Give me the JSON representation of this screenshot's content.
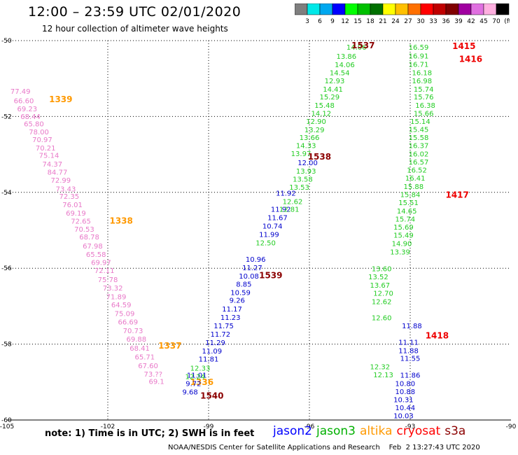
{
  "header": {
    "title": "12:00 – 23:59 UTC 02/01/2020",
    "subtitle": "12 hour collection of altimeter wave heights"
  },
  "color_scale": {
    "labels": [
      "3",
      "6",
      "9",
      "12",
      "15",
      "18",
      "21",
      "24",
      "27",
      "30",
      "33",
      "36",
      "39",
      "42",
      "45",
      "70",
      "(ft)"
    ],
    "colors": [
      "#7f7f7f",
      "#00e8e8",
      "#00a8f0",
      "#0000ff",
      "#00ff00",
      "#00c000",
      "#007000",
      "#ffff00",
      "#ffc000",
      "#ff7000",
      "#ff0000",
      "#c00000",
      "#800000",
      "#a000a0",
      "#e070e0",
      "#ffb0e0",
      "#000000"
    ]
  },
  "note": "note:  1) Time is in UTC;  2) SWH is in feet",
  "legend": [
    {
      "name": "jason2",
      "color": "#0000ff"
    },
    {
      "name": "jason3",
      "color": "#00b000"
    },
    {
      "name": "altika",
      "color": "#ff9900"
    },
    {
      "name": "cryosat",
      "color": "#ff0000"
    },
    {
      "name": "s3a",
      "color": "#8b0000"
    }
  ],
  "credit": "NOAA/NESDIS Center for Satellite Applications and Research    Feb  2 13:27:43 UTC 2020",
  "chart_data": {
    "type": "scatter",
    "xlim": [
      -105,
      -90
    ],
    "ylim": [
      -60,
      -50
    ],
    "x_ticks": [
      "-105",
      "-102",
      "-99",
      "-96",
      "-93",
      "-90"
    ],
    "y_ticks": [
      "-50",
      "-52",
      "-54",
      "-56",
      "-58",
      "-60"
    ],
    "grid": true,
    "series": [
      {
        "name": "s3a",
        "color": "#e878c8",
        "type": "values",
        "points": [
          [
            -104.6,
            -51.33,
            "77.49"
          ],
          [
            -104.5,
            -51.58,
            "66.60"
          ],
          [
            -104.4,
            -51.79,
            "69.23"
          ],
          [
            -104.3,
            -51.99,
            "68.44"
          ],
          [
            -104.2,
            -52.19,
            "65.80"
          ],
          [
            -104.05,
            -52.4,
            "78.00"
          ],
          [
            -103.95,
            -52.6,
            "70.97"
          ],
          [
            -103.85,
            -52.82,
            "70.21"
          ],
          [
            -103.75,
            -53.02,
            "75.14"
          ],
          [
            -103.65,
            -53.25,
            "74.37"
          ],
          [
            -103.5,
            -53.46,
            "84.77"
          ],
          [
            -103.4,
            -53.67,
            "72.99"
          ],
          [
            -103.25,
            -53.9,
            "73.43"
          ],
          [
            -103.15,
            -54.1,
            "72.35"
          ],
          [
            -103.05,
            -54.32,
            "76.01"
          ],
          [
            -102.95,
            -54.54,
            "69.19"
          ],
          [
            -102.8,
            -54.75,
            "72.65"
          ],
          [
            -102.7,
            -54.96,
            "70.53"
          ],
          [
            -102.55,
            -55.17,
            "68.78"
          ],
          [
            -102.45,
            -55.41,
            "67.98"
          ],
          [
            -102.35,
            -55.63,
            "65.58"
          ],
          [
            -102.2,
            -55.84,
            "69.97"
          ],
          [
            -102.1,
            -56.05,
            "72.11"
          ],
          [
            -102.0,
            -56.29,
            "75.78"
          ],
          [
            -101.85,
            -56.51,
            "73.32"
          ],
          [
            -101.75,
            -56.74,
            "71.89"
          ],
          [
            -101.6,
            -56.96,
            "64.59"
          ],
          [
            -101.5,
            -57.19,
            "75.09"
          ],
          [
            -101.4,
            -57.41,
            "66.69"
          ],
          [
            -101.25,
            -57.64,
            "70.73"
          ],
          [
            -101.15,
            -57.86,
            "69.88"
          ],
          [
            -101.05,
            -58.1,
            "68.41"
          ],
          [
            -100.9,
            -58.33,
            "65.71"
          ],
          [
            -100.8,
            -58.56,
            "67.60"
          ],
          [
            -100.65,
            -58.78,
            "73.??"
          ],
          [
            -100.55,
            -58.98,
            "69.1"
          ]
        ]
      },
      {
        "name": "s3a-pass",
        "color": "#ff9900",
        "type": "labels",
        "points": [
          [
            -103.4,
            -51.55,
            "1339"
          ],
          [
            -101.6,
            -54.75,
            "1338"
          ],
          [
            -100.15,
            -58.04,
            "1337"
          ],
          [
            -99.2,
            -59.0,
            "1336"
          ]
        ]
      },
      {
        "name": "jason2",
        "color": "#0000cc",
        "type": "values",
        "points": [
          [
            -96.05,
            -53.21,
            "12.00"
          ],
          [
            -96.7,
            -54.01,
            "11.92"
          ],
          [
            -96.85,
            -54.44,
            "11.92"
          ],
          [
            -96.95,
            -54.66,
            "11.67"
          ],
          [
            -97.1,
            -54.88,
            "10.74"
          ],
          [
            -97.2,
            -55.1,
            "11.99"
          ],
          [
            -97.6,
            -55.76,
            "10.96"
          ],
          [
            -97.7,
            -55.98,
            "11.27"
          ],
          [
            -97.8,
            -56.2,
            "10.08"
          ],
          [
            -97.95,
            -56.41,
            "8.85"
          ],
          [
            -98.05,
            -56.63,
            "10.59"
          ],
          [
            -98.15,
            -56.84,
            "9.26"
          ],
          [
            -98.3,
            -57.07,
            "11.17"
          ],
          [
            -98.35,
            -57.29,
            "11.23"
          ],
          [
            -98.55,
            -57.51,
            "11.75"
          ],
          [
            -98.65,
            -57.73,
            "11.72"
          ],
          [
            -98.8,
            -57.95,
            "11.29"
          ],
          [
            -98.9,
            -58.17,
            "11.09"
          ],
          [
            -99.0,
            -58.39,
            "11.81"
          ],
          [
            -99.35,
            -58.81,
            "11.01"
          ],
          [
            -99.45,
            -59.03,
            "9.72"
          ],
          [
            -99.55,
            -59.25,
            "9.68"
          ],
          [
            -92.95,
            -57.51,
            "11.88"
          ],
          [
            -93.05,
            -57.94,
            "11.11"
          ],
          [
            -93.05,
            -58.16,
            "11.88"
          ],
          [
            -93.0,
            -58.37,
            "11.55"
          ],
          [
            -93.0,
            -58.81,
            "11.86"
          ],
          [
            -93.15,
            -59.03,
            "10.80"
          ],
          [
            -93.15,
            -59.24,
            "10.88"
          ],
          [
            -93.2,
            -59.46,
            "10.31"
          ],
          [
            -93.15,
            -59.67,
            "10.44"
          ],
          [
            -93.2,
            -59.88,
            "10.03"
          ]
        ]
      },
      {
        "name": "jason3",
        "color": "#22cc22",
        "type": "values",
        "points": [
          [
            -94.6,
            -50.17,
            "14.06"
          ],
          [
            -94.9,
            -50.41,
            "13.86"
          ],
          [
            -94.95,
            -50.63,
            "14.06"
          ],
          [
            -95.1,
            -50.84,
            "14.54"
          ],
          [
            -95.25,
            -51.05,
            "12.93"
          ],
          [
            -95.3,
            -51.27,
            "14.41"
          ],
          [
            -95.4,
            -51.48,
            "15.29"
          ],
          [
            -95.55,
            -51.7,
            "15.48"
          ],
          [
            -95.65,
            -51.91,
            "14.12"
          ],
          [
            -95.8,
            -52.12,
            "12.90"
          ],
          [
            -95.85,
            -52.34,
            "13.29"
          ],
          [
            -96.0,
            -52.55,
            "13.66"
          ],
          [
            -96.1,
            -52.76,
            "14.33"
          ],
          [
            -96.25,
            -52.97,
            "13.97"
          ],
          [
            -96.1,
            -53.43,
            "13.93"
          ],
          [
            -96.2,
            -53.64,
            "13.58"
          ],
          [
            -96.3,
            -53.86,
            "13.53"
          ],
          [
            -96.5,
            -54.23,
            "12.62"
          ],
          [
            -96.6,
            -54.44,
            "12.81"
          ],
          [
            -97.3,
            -55.32,
            "12.50"
          ],
          [
            -93.85,
            -56.01,
            "13.60"
          ],
          [
            -93.95,
            -56.22,
            "13.52"
          ],
          [
            -93.9,
            -56.44,
            "13.67"
          ],
          [
            -93.8,
            -56.65,
            "12.70"
          ],
          [
            -93.85,
            -56.87,
            "12.62"
          ],
          [
            -93.85,
            -57.3,
            "12.60"
          ],
          [
            -93.9,
            -58.59,
            "12.32"
          ],
          [
            -93.8,
            -58.8,
            "12.13"
          ],
          [
            -99.25,
            -58.63,
            "12.33"
          ],
          [
            -99.4,
            -58.85,
            "12.24"
          ],
          [
            -92.75,
            -50.17,
            "16.59"
          ],
          [
            -92.75,
            -50.4,
            "16.91"
          ],
          [
            -92.75,
            -50.62,
            "16.71"
          ],
          [
            -92.65,
            -50.84,
            "16.18"
          ],
          [
            -92.65,
            -51.05,
            "16.98"
          ],
          [
            -92.6,
            -51.27,
            "15.74"
          ],
          [
            -92.6,
            -51.48,
            "15.76"
          ],
          [
            -92.55,
            -51.7,
            "16.38"
          ],
          [
            -92.6,
            -51.91,
            "15.66"
          ],
          [
            -92.7,
            -52.12,
            "15.14"
          ],
          [
            -92.75,
            -52.33,
            "15.45"
          ],
          [
            -92.75,
            -52.55,
            "15.58"
          ],
          [
            -92.75,
            -52.76,
            "16.37"
          ],
          [
            -92.75,
            -52.98,
            "16.02"
          ],
          [
            -92.75,
            -53.19,
            "16.57"
          ],
          [
            -92.8,
            -53.4,
            "16.52"
          ],
          [
            -92.85,
            -53.62,
            "16.41"
          ],
          [
            -92.9,
            -53.84,
            "15.88"
          ],
          [
            -93.0,
            -54.05,
            "15.84"
          ],
          [
            -93.05,
            -54.26,
            "15.51"
          ],
          [
            -93.1,
            -54.48,
            "14.65"
          ],
          [
            -93.15,
            -54.7,
            "15.74"
          ],
          [
            -93.2,
            -54.91,
            "15.69"
          ],
          [
            -93.2,
            -55.12,
            "15.49"
          ],
          [
            -93.25,
            -55.34,
            "14.90"
          ],
          [
            -93.3,
            -55.56,
            "13.39"
          ]
        ]
      },
      {
        "name": "cryosat",
        "color": "#ee0000",
        "type": "labels",
        "points": [
          [
            -91.4,
            -50.15,
            "1415"
          ],
          [
            -91.2,
            -50.49,
            "1416"
          ],
          [
            -91.6,
            -54.07,
            "1417"
          ],
          [
            -92.2,
            -57.78,
            "1418"
          ]
        ]
      },
      {
        "name": "s3a-labels",
        "color": "#8b0000",
        "type": "labels",
        "points": [
          [
            -94.4,
            -50.13,
            "1537"
          ],
          [
            -95.7,
            -53.06,
            "1538"
          ],
          [
            -97.15,
            -56.19,
            "1539"
          ],
          [
            -98.9,
            -59.36,
            "1540"
          ]
        ]
      }
    ]
  }
}
